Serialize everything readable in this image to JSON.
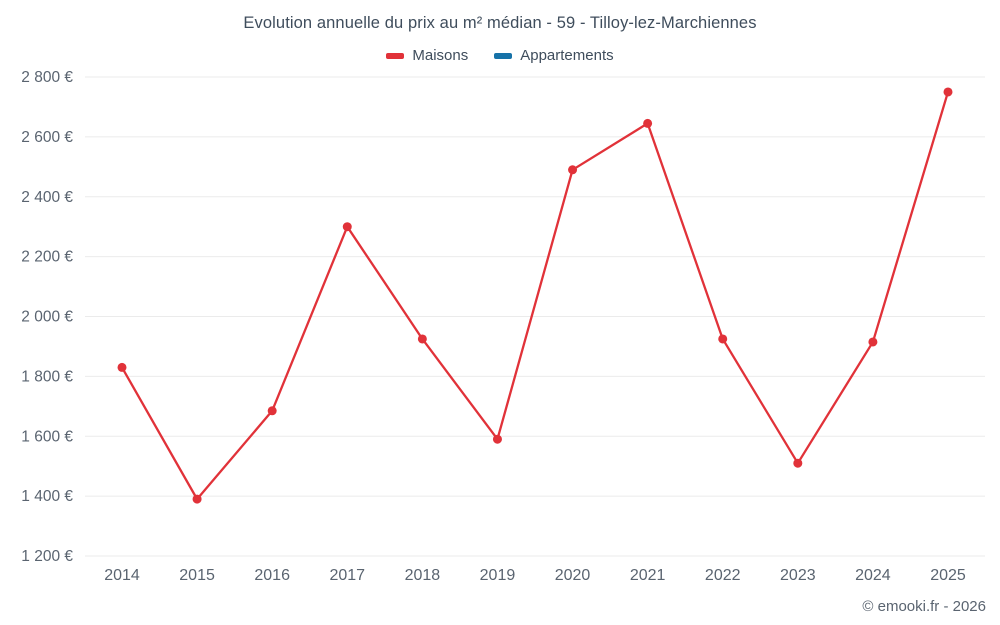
{
  "header": {
    "title": "Evolution annuelle du prix au m² médian - 59 - Tilloy-lez-Marchiennes"
  },
  "legend": [
    {
      "label": "Maisons",
      "color": "#e13239"
    },
    {
      "label": "Appartements",
      "color": "#1672a8"
    }
  ],
  "chart_data": {
    "type": "line",
    "title": "Evolution annuelle du prix au m² médian - 59 - Tilloy-lez-Marchiennes",
    "categories": [
      "2014",
      "2015",
      "2016",
      "2017",
      "2018",
      "2019",
      "2020",
      "2021",
      "2022",
      "2023",
      "2024",
      "2025"
    ],
    "series": [
      {
        "name": "Maisons",
        "color": "#e13239",
        "values": [
          1830,
          1390,
          1685,
          2300,
          1925,
          1590,
          2490,
          2645,
          1925,
          1510,
          1915,
          2750
        ]
      },
      {
        "name": "Appartements",
        "color": "#1672a8",
        "values": []
      }
    ],
    "xlabel": "",
    "ylabel": "",
    "ylim": [
      1200,
      2800
    ],
    "ytick_step": 200,
    "ytick_suffix": " €",
    "grid": "horizontal",
    "legend_position": "top"
  },
  "footer": {
    "copyright": "© emooki.fr - 2026"
  }
}
